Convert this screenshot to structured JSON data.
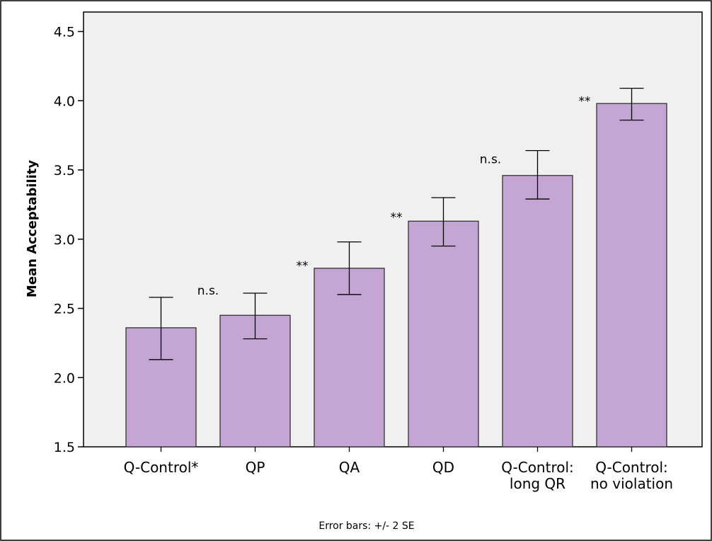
{
  "chart_data": {
    "type": "bar",
    "ylabel": "Mean Acceptability",
    "xlabel": "",
    "ylim": [
      1.5,
      4.6
    ],
    "yticks": [
      "1.5",
      "2.0",
      "2.5",
      "3.0",
      "3.5",
      "4.0",
      "4.5"
    ],
    "grid": false,
    "categories": [
      [
        "Q-Control*"
      ],
      [
        "QP"
      ],
      [
        "QA"
      ],
      [
        "QD"
      ],
      [
        "Q-Control:",
        "long QR"
      ],
      [
        "Q-Control:",
        "no violation"
      ]
    ],
    "values": [
      2.36,
      2.45,
      2.79,
      3.13,
      3.46,
      3.98
    ],
    "error_low": [
      2.13,
      2.28,
      2.6,
      2.95,
      3.29,
      3.86
    ],
    "error_high": [
      2.58,
      2.61,
      2.98,
      3.3,
      3.64,
      4.09
    ],
    "annotations": [
      {
        "text": "n.s.",
        "between": [
          0,
          1
        ],
        "y": 2.63
      },
      {
        "text": "**",
        "between": [
          1,
          2
        ],
        "y": 2.81
      },
      {
        "text": "**",
        "between": [
          2,
          3
        ],
        "y": 3.16
      },
      {
        "text": "n.s.",
        "between": [
          3,
          4
        ],
        "y": 3.58
      },
      {
        "text": "**",
        "between": [
          4,
          5
        ],
        "y": 4.0
      }
    ],
    "footnote": "Error bars: +/- 2 SE",
    "colors": {
      "bar_fill": "#c5a5d3",
      "bar_stroke": "#333333",
      "plot_background": "#f0f0f0",
      "frame": "#000000"
    }
  }
}
